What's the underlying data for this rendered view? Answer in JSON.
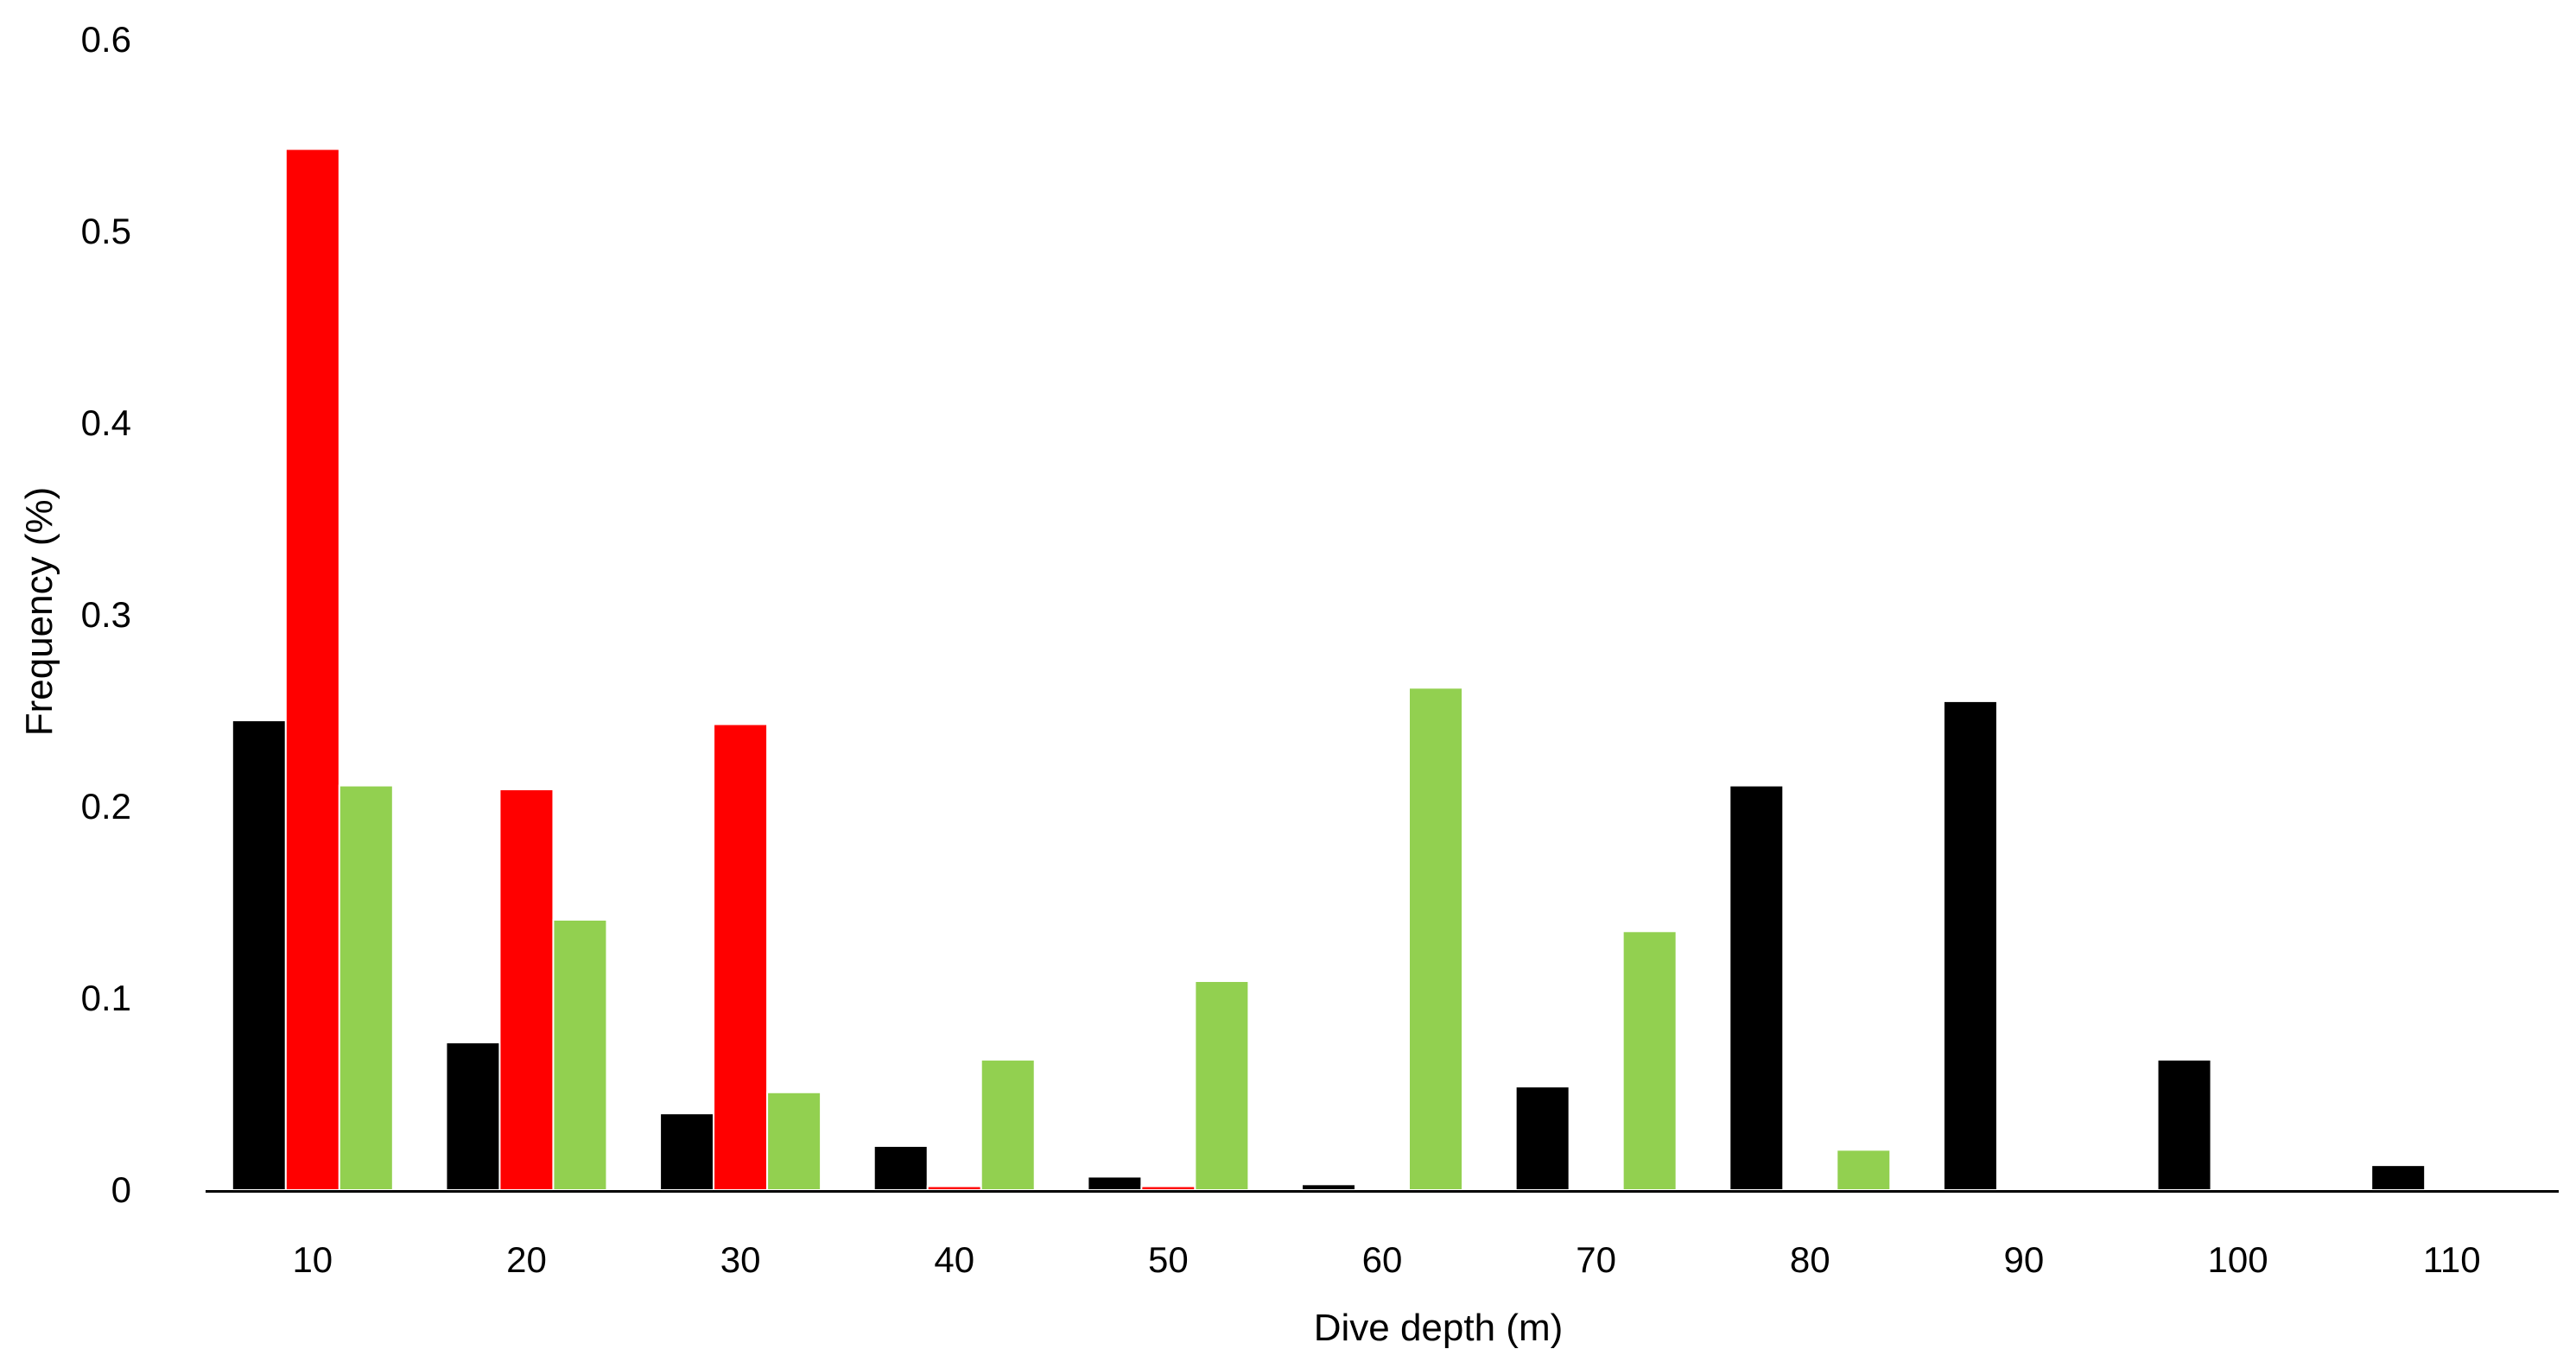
{
  "chart_data": {
    "type": "bar",
    "title": "",
    "xlabel": "Dive depth (m)",
    "ylabel": "Frequency (%)",
    "ylim": [
      0,
      0.6
    ],
    "yticks": [
      "0",
      "0.1",
      "0.2",
      "0.3",
      "0.4",
      "0.5",
      "0.6"
    ],
    "grid": false,
    "legend": "none",
    "categories": [
      "10",
      "20",
      "30",
      "40",
      "50",
      "60",
      "70",
      "80",
      "90",
      "100",
      "110"
    ],
    "series": [
      {
        "name": "black series",
        "color": "#000000",
        "values": [
          0.245,
          0.077,
          0.04,
          0.023,
          0.007,
          0.003,
          0.054,
          0.211,
          0.255,
          0.068,
          0.013
        ]
      },
      {
        "name": "red series",
        "color": "#ff0000",
        "values": [
          0.543,
          0.209,
          0.243,
          0.002,
          0.002,
          0,
          0,
          0,
          0,
          0,
          0
        ]
      },
      {
        "name": "green series",
        "color": "#92d050",
        "values": [
          0.211,
          0.141,
          0.051,
          0.068,
          0.109,
          0.262,
          0.135,
          0.021,
          0,
          0,
          0
        ]
      }
    ]
  }
}
